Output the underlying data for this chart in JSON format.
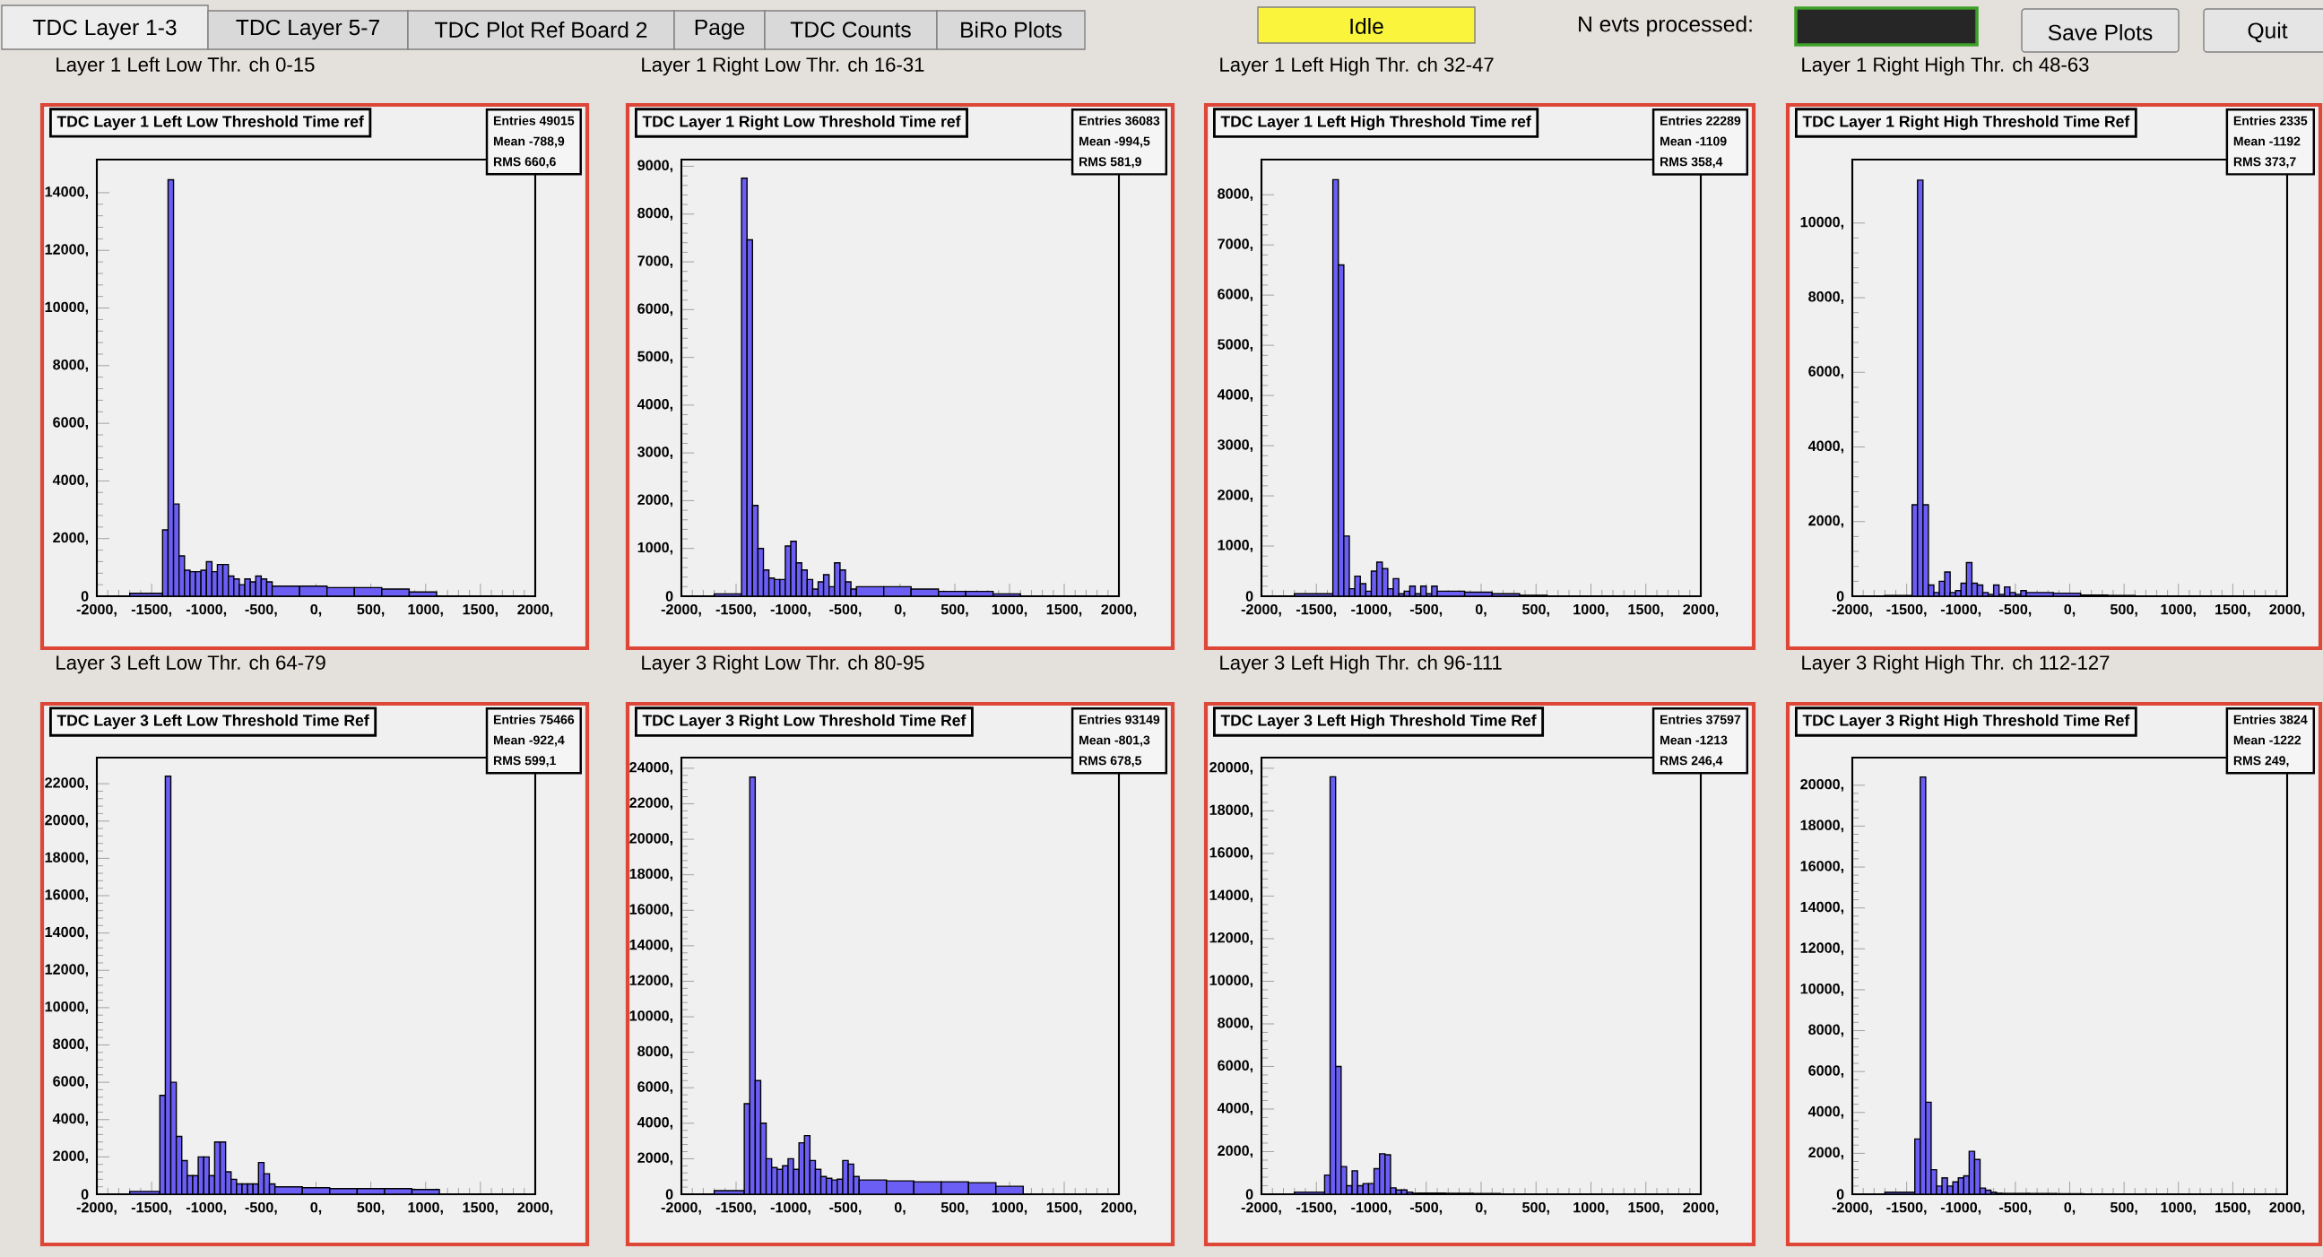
{
  "chart_data": [
    {
      "type": "other",
      "annotations": [
        "TDC  Layer 1-3",
        "TDC Layer 5-7",
        "TDC Plot Ref Board 2",
        "Page",
        "TDC Counts",
        "BiRo Plots",
        "Idle",
        "N evts processed:",
        "Save Plots",
        "Quit"
      ]
    },
    {
      "type": "histogram",
      "title": "Layer 1 Left Low Thr.  ch 0-15",
      "subtitle": "TDC Layer 1 Left Low Threshold Time ref",
      "annotations": [
        "Entries 49015",
        "Mean -788,9",
        "RMS 660,6"
      ],
      "color": "#6b5ef5",
      "bins": [
        -1700,
        -1400,
        -1350,
        -1300,
        -1250,
        -1200,
        -1150,
        -1100,
        -1050,
        -1000,
        -950,
        -900,
        -850,
        -800,
        -750,
        -700,
        -650,
        -600,
        -550,
        -500,
        -450,
        -400,
        -150,
        100,
        350,
        600,
        850,
        1100
      ],
      "values": [
        100,
        2300,
        14450,
        3200,
        1400,
        900,
        850,
        850,
        900,
        1200,
        850,
        1100,
        1100,
        700,
        600,
        400,
        600,
        500,
        700,
        600,
        500,
        350,
        350,
        300,
        300,
        250,
        150
      ],
      "xlim": [
        -2000,
        2000
      ],
      "ylim": [
        0,
        15150
      ],
      "xticks": [
        {
          "value": -2000,
          "label": "-2000,"
        },
        {
          "value": -1500,
          "label": "-1500,"
        },
        {
          "value": -1000,
          "label": "-1000,"
        },
        {
          "value": -500,
          "label": "-500,"
        },
        {
          "value": 0,
          "label": "0,"
        },
        {
          "value": 500,
          "label": "500,"
        },
        {
          "value": 1000,
          "label": "1000,"
        },
        {
          "value": 1500,
          "label": "1500,"
        },
        {
          "value": 2000,
          "label": "2000,"
        }
      ],
      "yticks": [
        0,
        {
          "value": 2000,
          "label": "2000,"
        },
        {
          "value": 4000,
          "label": "4000,"
        },
        {
          "value": 6000,
          "label": "6000,"
        },
        {
          "value": 8000,
          "label": "8000,"
        },
        {
          "value": 10000,
          "label": "10000,"
        },
        {
          "value": 12000,
          "label": "12000,"
        },
        {
          "value": 14000,
          "label": "14000,"
        }
      ]
    },
    {
      "type": "histogram",
      "title": "Layer 1 Right Low Thr. ch 16-31",
      "subtitle": "TDC Layer 1 Right Low Threshold Time ref",
      "annotations": [
        "Entries 36083",
        "Mean -994,5",
        "RMS 581,9"
      ],
      "color": "#6b5ef5",
      "bins": [
        -1700,
        -1450,
        -1400,
        -1350,
        -1300,
        -1250,
        -1200,
        -1150,
        -1100,
        -1050,
        -1000,
        -950,
        -900,
        -850,
        -800,
        -750,
        -700,
        -650,
        -600,
        -550,
        -500,
        -450,
        -400,
        -150,
        100,
        350,
        600,
        850,
        1100
      ],
      "values": [
        50,
        8750,
        7460,
        1900,
        1000,
        550,
        380,
        350,
        350,
        1050,
        1150,
        700,
        550,
        350,
        150,
        300,
        450,
        200,
        700,
        550,
        300,
        150,
        200,
        200,
        150,
        100,
        100,
        50
      ],
      "xlim": [
        -2000,
        2000
      ],
      "ylim": [
        0,
        9140
      ],
      "xticks": [
        {
          "value": -2000,
          "label": "-2000,"
        },
        {
          "value": -1500,
          "label": "-1500,"
        },
        {
          "value": -1000,
          "label": "-1000,"
        },
        {
          "value": -500,
          "label": "-500,"
        },
        {
          "value": 0,
          "label": "0,"
        },
        {
          "value": 500,
          "label": "500,"
        },
        {
          "value": 1000,
          "label": "1000,"
        },
        {
          "value": 1500,
          "label": "1500,"
        },
        {
          "value": 2000,
          "label": "2000,"
        }
      ],
      "yticks": [
        0,
        {
          "value": 1000,
          "label": "1000,"
        },
        {
          "value": 2000,
          "label": "2000,"
        },
        {
          "value": 3000,
          "label": "3000,"
        },
        {
          "value": 4000,
          "label": "4000,"
        },
        {
          "value": 5000,
          "label": "5000,"
        },
        {
          "value": 6000,
          "label": "6000,"
        },
        {
          "value": 7000,
          "label": "7000,"
        },
        {
          "value": 8000,
          "label": "8000,"
        },
        {
          "value": 9000,
          "label": "9000,"
        }
      ]
    },
    {
      "type": "histogram",
      "title": "Layer 1 Left High Thr. ch 32-47",
      "subtitle": "TDC Layer 1 Left High Threshold Time ref",
      "annotations": [
        "Entries 22289",
        "Mean -1109",
        "RMS 358,4"
      ],
      "color": "#6b5ef5",
      "bins": [
        -1700,
        -1350,
        -1300,
        -1250,
        -1200,
        -1150,
        -1100,
        -1050,
        -1000,
        -950,
        -900,
        -850,
        -800,
        -750,
        -700,
        -650,
        -600,
        -550,
        -500,
        -450,
        -400,
        -150,
        100,
        350,
        600
      ],
      "values": [
        50,
        8300,
        6600,
        1200,
        150,
        400,
        250,
        100,
        500,
        680,
        550,
        150,
        350,
        50,
        100,
        200,
        50,
        200,
        50,
        200,
        100,
        80,
        50,
        20
      ],
      "xlim": [
        -2000,
        2000
      ],
      "ylim": [
        0,
        8700
      ],
      "xticks": [
        {
          "value": -2000,
          "label": "-2000,"
        },
        {
          "value": -1500,
          "label": "-1500,"
        },
        {
          "value": -1000,
          "label": "-1000,"
        },
        {
          "value": -500,
          "label": "-500,"
        },
        {
          "value": 0,
          "label": "0,"
        },
        {
          "value": 500,
          "label": "500,"
        },
        {
          "value": 1000,
          "label": "1000,"
        },
        {
          "value": 1500,
          "label": "1500,"
        },
        {
          "value": 2000,
          "label": "2000,"
        }
      ],
      "yticks": [
        0,
        {
          "value": 1000,
          "label": "1000,"
        },
        {
          "value": 2000,
          "label": "2000,"
        },
        {
          "value": 3000,
          "label": "3000,"
        },
        {
          "value": 4000,
          "label": "4000,"
        },
        {
          "value": 5000,
          "label": "5000,"
        },
        {
          "value": 6000,
          "label": "6000,"
        },
        {
          "value": 7000,
          "label": "7000,"
        },
        {
          "value": 8000,
          "label": "8000,"
        }
      ]
    },
    {
      "type": "histogram",
      "title": "Layer 1 Right High Thr. ch 48-63",
      "subtitle": "TDC Layer 1 Right High Threshold Time Ref",
      "annotations": [
        "Entries 2335",
        "Mean -1192",
        "RMS 373,7"
      ],
      "color": "#6b5ef5",
      "bins": [
        -1700,
        -1450,
        -1400,
        -1350,
        -1300,
        -1250,
        -1200,
        -1150,
        -1100,
        -1050,
        -1000,
        -950,
        -900,
        -850,
        -800,
        -750,
        -700,
        -650,
        -600,
        -550,
        -500,
        -450,
        -400,
        -150,
        100,
        350,
        600
      ],
      "values": [
        20,
        2450,
        11150,
        2450,
        300,
        100,
        400,
        650,
        100,
        150,
        350,
        900,
        350,
        300,
        100,
        50,
        300,
        50,
        250,
        100,
        50,
        150,
        100,
        80,
        30,
        20
      ],
      "xlim": [
        -2000,
        2000
      ],
      "ylim": [
        0,
        11700
      ],
      "xticks": [
        {
          "value": -2000,
          "label": "-2000,"
        },
        {
          "value": -1500,
          "label": "-1500,"
        },
        {
          "value": -1000,
          "label": "-1000,"
        },
        {
          "value": -500,
          "label": "-500,"
        },
        {
          "value": 0,
          "label": "0,"
        },
        {
          "value": 500,
          "label": "500,"
        },
        {
          "value": 1000,
          "label": "1000,"
        },
        {
          "value": 1500,
          "label": "1500,"
        },
        {
          "value": 2000,
          "label": "2000,"
        }
      ],
      "yticks": [
        0,
        {
          "value": 2000,
          "label": "2000,"
        },
        {
          "value": 4000,
          "label": "4000,"
        },
        {
          "value": 6000,
          "label": "6000,"
        },
        {
          "value": 8000,
          "label": "8000,"
        },
        {
          "value": 10000,
          "label": "10000,"
        }
      ]
    },
    {
      "type": "histogram",
      "title": "Layer 3 Left Low Thr. ch 64-79",
      "subtitle": "TDC Layer 3 Left Low Threshold Time Ref",
      "annotations": [
        "Entries 75466",
        "Mean -922,4",
        "RMS 599,1"
      ],
      "color": "#6b5ef5",
      "bins": [
        -1700,
        -1425,
        -1375,
        -1325,
        -1275,
        -1225,
        -1175,
        -1125,
        -1075,
        -1025,
        -975,
        -925,
        -875,
        -825,
        -775,
        -725,
        -675,
        -625,
        -575,
        -525,
        -475,
        -425,
        -375,
        -125,
        125,
        375,
        625,
        875,
        1125
      ],
      "values": [
        150,
        5300,
        22400,
        6000,
        3100,
        1800,
        1000,
        1000,
        2000,
        2000,
        1000,
        2800,
        2800,
        1200,
        800,
        550,
        550,
        550,
        550,
        1700,
        1100,
        550,
        400,
        350,
        300,
        300,
        300,
        250
      ],
      "xlim": [
        -2000,
        2000
      ],
      "ylim": [
        0,
        23400
      ],
      "xticks": [
        {
          "value": -2000,
          "label": "-2000,"
        },
        {
          "value": -1500,
          "label": "-1500,"
        },
        {
          "value": -1000,
          "label": "-1000,"
        },
        {
          "value": -500,
          "label": "-500,"
        },
        {
          "value": 0,
          "label": "0,"
        },
        {
          "value": 500,
          "label": "500,"
        },
        {
          "value": 1000,
          "label": "1000,"
        },
        {
          "value": 1500,
          "label": "1500,"
        },
        {
          "value": 2000,
          "label": "2000,"
        }
      ],
      "yticks": [
        0,
        {
          "value": 2000,
          "label": "2000,"
        },
        {
          "value": 4000,
          "label": "4000,"
        },
        {
          "value": 6000,
          "label": "6000,"
        },
        {
          "value": 8000,
          "label": "8000,"
        },
        {
          "value": 10000,
          "label": "10000,"
        },
        {
          "value": 12000,
          "label": "12000,"
        },
        {
          "value": 14000,
          "label": "14000,"
        },
        {
          "value": 16000,
          "label": "16000,"
        },
        {
          "value": 18000,
          "label": "18000,"
        },
        {
          "value": 20000,
          "label": "20000,"
        },
        {
          "value": 22000,
          "label": "22000,"
        }
      ]
    },
    {
      "type": "histogram",
      "title": "Layer 3 Right Low Thr. ch 80-95",
      "subtitle": "TDC Layer 3 Right Low Threshold Time Ref",
      "annotations": [
        "Entries 93149",
        "Mean -801,3",
        "RMS 678,5"
      ],
      "color": "#6b5ef5",
      "bins": [
        -1700,
        -1425,
        -1375,
        -1325,
        -1275,
        -1225,
        -1175,
        -1125,
        -1075,
        -1025,
        -975,
        -925,
        -875,
        -825,
        -775,
        -725,
        -675,
        -625,
        -575,
        -525,
        -475,
        -425,
        -375,
        -125,
        125,
        375,
        625,
        875,
        1125
      ],
      "values": [
        200,
        5100,
        23500,
        6400,
        4000,
        2000,
        1500,
        1400,
        1600,
        2000,
        1400,
        2900,
        3300,
        1900,
        1400,
        1000,
        900,
        800,
        850,
        1900,
        1700,
        1000,
        800,
        750,
        700,
        700,
        650,
        450
      ],
      "xlim": [
        -2000,
        2000
      ],
      "ylim": [
        0,
        24600
      ],
      "xticks": [
        {
          "value": -2000,
          "label": "-2000,"
        },
        {
          "value": -1500,
          "label": "-1500,"
        },
        {
          "value": -1000,
          "label": "-1000,"
        },
        {
          "value": -500,
          "label": "-500,"
        },
        {
          "value": 0,
          "label": "0,"
        },
        {
          "value": 500,
          "label": "500,"
        },
        {
          "value": 1000,
          "label": "1000,"
        },
        {
          "value": 1500,
          "label": "1500,"
        },
        {
          "value": 2000,
          "label": "2000,"
        }
      ],
      "yticks": [
        0,
        {
          "value": 2000,
          "label": "2000,"
        },
        {
          "value": 4000,
          "label": "4000,"
        },
        {
          "value": 6000,
          "label": "6000,"
        },
        {
          "value": 8000,
          "label": "8000,"
        },
        {
          "value": 10000,
          "label": "10000,"
        },
        {
          "value": 12000,
          "label": "12000,"
        },
        {
          "value": 14000,
          "label": "14000,"
        },
        {
          "value": 16000,
          "label": "16000,"
        },
        {
          "value": 18000,
          "label": "18000,"
        },
        {
          "value": 20000,
          "label": "20000,"
        },
        {
          "value": 22000,
          "label": "22000,"
        },
        {
          "value": 24000,
          "label": "24000,"
        }
      ]
    },
    {
      "type": "histogram",
      "title": "Layer 3 Left High Thr. ch 96-111",
      "subtitle": "TDC Layer 3 Left High Threshold Time Ref",
      "annotations": [
        "Entries 37597",
        "Mean -1213",
        "RMS 246,4"
      ],
      "color": "#6b5ef5",
      "bins": [
        -1700,
        -1425,
        -1375,
        -1325,
        -1275,
        -1225,
        -1175,
        -1125,
        -1075,
        -1025,
        -975,
        -925,
        -875,
        -825,
        -775,
        -725,
        -675,
        -625,
        -575,
        -325,
        -75,
        175,
        425
      ],
      "values": [
        100,
        900,
        19600,
        6000,
        1300,
        400,
        1100,
        400,
        500,
        500,
        1200,
        1900,
        1850,
        300,
        200,
        200,
        100,
        50,
        50,
        40,
        30,
        10
      ],
      "xlim": [
        -2000,
        2000
      ],
      "ylim": [
        0,
        20500
      ],
      "xticks": [
        {
          "value": -2000,
          "label": "-2000,"
        },
        {
          "value": -1500,
          "label": "-1500,"
        },
        {
          "value": -1000,
          "label": "-1000,"
        },
        {
          "value": -500,
          "label": "-500,"
        },
        {
          "value": 0,
          "label": "0,"
        },
        {
          "value": 500,
          "label": "500,"
        },
        {
          "value": 1000,
          "label": "1000,"
        },
        {
          "value": 1500,
          "label": "1500,"
        },
        {
          "value": 2000,
          "label": "2000,"
        }
      ],
      "yticks": [
        0,
        {
          "value": 2000,
          "label": "2000,"
        },
        {
          "value": 4000,
          "label": "4000,"
        },
        {
          "value": 6000,
          "label": "6000,"
        },
        {
          "value": 8000,
          "label": "8000,"
        },
        {
          "value": 10000,
          "label": "10000,"
        },
        {
          "value": 12000,
          "label": "12000,"
        },
        {
          "value": 14000,
          "label": "14000,"
        },
        {
          "value": 16000,
          "label": "16000,"
        },
        {
          "value": 18000,
          "label": "18000,"
        },
        {
          "value": 20000,
          "label": "20000,"
        }
      ]
    },
    {
      "type": "histogram",
      "title": "Layer 3 Right High Thr. ch 112-127",
      "subtitle": "TDC Layer 3 Right High Threshold Time Ref",
      "annotations": [
        "Entries 3824",
        "Mean -1222",
        "RMS 249,"
      ],
      "color": "#6b5ef5",
      "bins": [
        -1700,
        -1425,
        -1375,
        -1325,
        -1275,
        -1225,
        -1175,
        -1125,
        -1075,
        -1025,
        -975,
        -925,
        -875,
        -825,
        -775,
        -725,
        -675,
        -625,
        -375,
        -125,
        125,
        375
      ],
      "values": [
        100,
        2700,
        20400,
        4500,
        1200,
        400,
        800,
        400,
        600,
        800,
        900,
        2100,
        1700,
        300,
        200,
        100,
        50,
        40,
        30,
        20,
        10
      ],
      "xlim": [
        -2000,
        2000
      ],
      "ylim": [
        0,
        21350
      ],
      "xticks": [
        {
          "value": -2000,
          "label": "-2000,"
        },
        {
          "value": -1500,
          "label": "-1500,"
        },
        {
          "value": -1000,
          "label": "-1000,"
        },
        {
          "value": -500,
          "label": "-500,"
        },
        {
          "value": 0,
          "label": "0,"
        },
        {
          "value": 500,
          "label": "500,"
        },
        {
          "value": 1000,
          "label": "1000,"
        },
        {
          "value": 1500,
          "label": "1500,"
        },
        {
          "value": 2000,
          "label": "2000,"
        }
      ],
      "yticks": [
        0,
        {
          "value": 2000,
          "label": "2000,"
        },
        {
          "value": 4000,
          "label": "4000,"
        },
        {
          "value": 6000,
          "label": "6000,"
        },
        {
          "value": 8000,
          "label": "8000,"
        },
        {
          "value": 10000,
          "label": "10000,"
        },
        {
          "value": 12000,
          "label": "12000,"
        },
        {
          "value": 14000,
          "label": "14000,"
        },
        {
          "value": 16000,
          "label": "16000,"
        },
        {
          "value": 18000,
          "label": "18000,"
        },
        {
          "value": 20000,
          "label": "20000,"
        }
      ]
    }
  ]
}
